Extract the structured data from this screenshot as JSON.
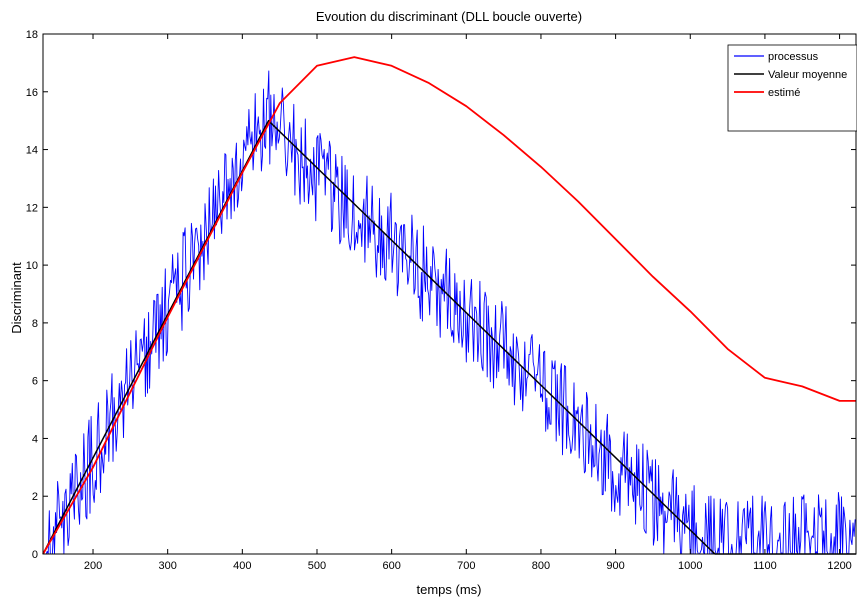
{
  "chart_data": {
    "type": "line",
    "title": "Evoution du discriminant (DLL boucle ouverte)",
    "xlabel": "temps (ms)",
    "ylabel": "Discriminant",
    "xlim": [
      133,
      1222
    ],
    "ylim": [
      0,
      18
    ],
    "xticks": [
      200,
      300,
      400,
      500,
      600,
      700,
      800,
      900,
      1000,
      1100,
      1200
    ],
    "yticks": [
      0,
      2,
      4,
      6,
      8,
      10,
      12,
      14,
      16,
      18
    ],
    "grid": false,
    "legend": "top-right",
    "series": [
      {
        "name": "processus",
        "color": "#0000ff",
        "style": "noisy",
        "x": [
          133,
          200,
          300,
          400,
          435,
          500,
          600,
          700,
          800,
          900,
          1000,
          1035,
          1100,
          1222
        ],
        "y": [
          0,
          3.3,
          8.5,
          13.4,
          15.1,
          13.1,
          10.8,
          8.2,
          5.9,
          3.0,
          0.8,
          0.2,
          0.4,
          0.5
        ]
      },
      {
        "name": "Valeur moyenne",
        "color": "#000000",
        "style": "line",
        "x": [
          133,
          435,
          1033,
          1222
        ],
        "y": [
          0,
          15.0,
          0,
          0
        ]
      },
      {
        "name": "estimé",
        "color": "#ff0000",
        "style": "line",
        "x": [
          133,
          200,
          300,
          400,
          450,
          500,
          550,
          600,
          650,
          700,
          750,
          800,
          850,
          900,
          950,
          1000,
          1050,
          1100,
          1150,
          1200,
          1222
        ],
        "y": [
          0,
          3.0,
          8.2,
          13.2,
          15.6,
          16.9,
          17.2,
          16.9,
          16.3,
          15.5,
          14.5,
          13.4,
          12.2,
          10.9,
          9.6,
          8.4,
          7.1,
          6.1,
          5.8,
          5.3,
          5.3
        ]
      }
    ]
  }
}
